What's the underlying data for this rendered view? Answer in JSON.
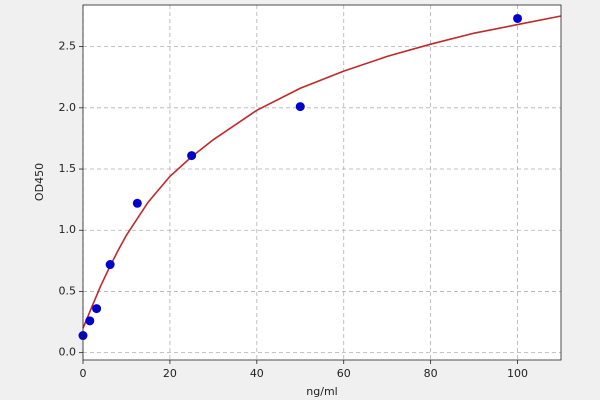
{
  "chart_data": {
    "type": "scatter",
    "xlabel": "ng/ml",
    "ylabel": "OD450",
    "xlim": [
      0,
      110
    ],
    "xticks": [
      0,
      20,
      40,
      60,
      80,
      100
    ],
    "ylim": [
      -0.06,
      2.84
    ],
    "yticks": [
      {
        "value": 0,
        "label": "0.0"
      },
      0.5,
      {
        "value": 1,
        "label": "1.0"
      },
      1.5,
      {
        "value": 2,
        "label": "2.0"
      },
      2.5
    ],
    "grid": true,
    "series": [
      {
        "type": "line",
        "color": "#c0282a",
        "x": [
          0,
          2,
          4,
          6,
          8,
          10,
          15,
          20,
          25,
          30,
          40,
          50,
          60,
          70,
          80,
          90,
          100,
          110
        ],
        "values": [
          0.2,
          0.37,
          0.54,
          0.69,
          0.83,
          0.96,
          1.23,
          1.44,
          1.6,
          1.74,
          1.98,
          2.16,
          2.3,
          2.42,
          2.52,
          2.61,
          2.68,
          2.75
        ]
      },
      {
        "type": "scatter",
        "color": "#0000cc",
        "x": [
          0,
          1.56,
          3.125,
          6.25,
          12.5,
          25,
          50,
          100
        ],
        "values": [
          0.14,
          0.26,
          0.36,
          0.72,
          1.22,
          1.61,
          2.01,
          2.73
        ]
      }
    ]
  }
}
